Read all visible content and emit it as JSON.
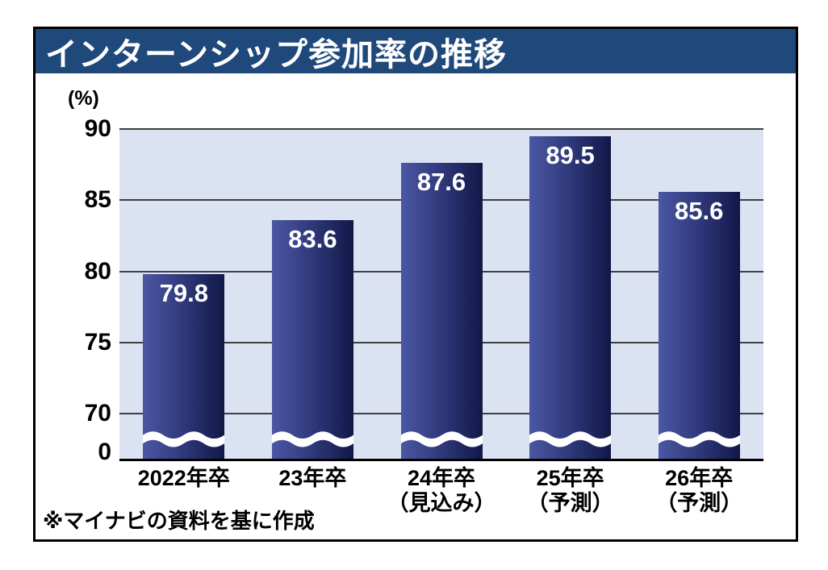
{
  "header": {
    "title": "インターンシップ参加率の推移"
  },
  "footnote": "※マイナビの資料を基に作成",
  "colors": {
    "banner": "#20497b",
    "plot_background": "#dbe2f2",
    "bar_gradient_left": "#4b57a3",
    "bar_gradient_right": "#111848",
    "gridline": "#3f3f3f",
    "value_label": "#ffffff"
  },
  "chart_data": {
    "type": "bar",
    "title": "インターンシップ参加率の推移",
    "unit": "(%)",
    "categories": [
      [
        "2022年卒"
      ],
      [
        "23年卒"
      ],
      [
        "24年卒",
        "（見込み）"
      ],
      [
        "25年卒",
        "（予測）"
      ],
      [
        "26年卒",
        "（予測）"
      ]
    ],
    "values": [
      79.8,
      83.6,
      87.6,
      89.5,
      85.6
    ],
    "value_labels": [
      "79.8",
      "83.6",
      "87.6",
      "89.5",
      "85.6"
    ],
    "yticks": [
      90,
      85,
      80,
      75,
      70,
      0
    ],
    "ylim": [
      70,
      90
    ],
    "axis_break": true,
    "grid": true,
    "legend": null,
    "source_note": "※マイナビの資料を基に作成"
  }
}
